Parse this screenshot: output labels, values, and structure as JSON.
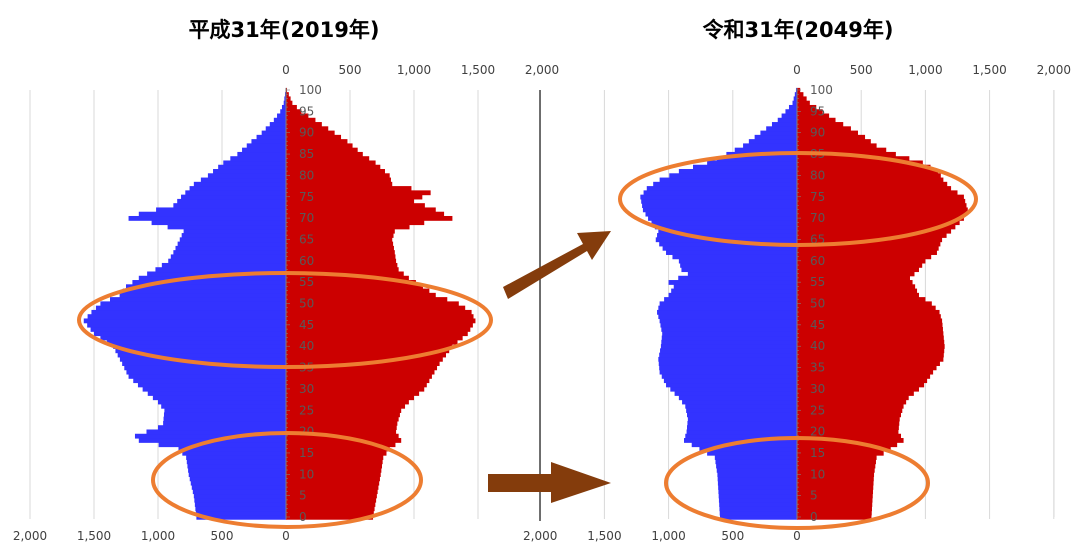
{
  "chart_data": [
    {
      "type": "population-pyramid",
      "title": "平成31年(2019年)",
      "top_ticks": [
        "0",
        "500",
        "1,000",
        "1,500",
        "2,000"
      ],
      "bottom_ticks": [
        "2,000",
        "1,500",
        "1,000",
        "500",
        "0"
      ],
      "age_labels": [
        "0",
        "5",
        "10",
        "15",
        "20",
        "25",
        "30",
        "35",
        "40",
        "45",
        "50",
        "55",
        "60",
        "65",
        "70",
        "75",
        "80",
        "85",
        "90",
        "95",
        "100"
      ],
      "xlim": [
        0,
        2000
      ],
      "ages": [
        0,
        100
      ],
      "series": [
        {
          "values_by_age": [
            [
              0,
              700
            ],
            [
              5,
              720
            ],
            [
              10,
              760
            ],
            [
              14,
              780
            ],
            [
              16,
              840
            ],
            [
              18,
              1150
            ],
            [
              19,
              1180
            ],
            [
              21,
              1000
            ],
            [
              22,
              960
            ],
            [
              25,
              950
            ],
            [
              27,
              1000
            ],
            [
              30,
              1120
            ],
            [
              33,
              1230
            ],
            [
              36,
              1280
            ],
            [
              40,
              1350
            ],
            [
              43,
              1500
            ],
            [
              46,
              1580
            ],
            [
              48,
              1520
            ],
            [
              50,
              1450
            ],
            [
              52,
              1300
            ],
            [
              54,
              1250
            ],
            [
              56,
              1150
            ],
            [
              58,
              1020
            ],
            [
              60,
              920
            ],
            [
              62,
              880
            ],
            [
              65,
              830
            ],
            [
              67,
              800
            ],
            [
              69,
              1050
            ],
            [
              70,
              1230
            ],
            [
              71,
              1150
            ],
            [
              73,
              880
            ],
            [
              75,
              820
            ],
            [
              78,
              720
            ],
            [
              80,
              610
            ],
            [
              83,
              490
            ],
            [
              85,
              380
            ],
            [
              88,
              270
            ],
            [
              90,
              190
            ],
            [
              93,
              95
            ],
            [
              95,
              45
            ],
            [
              97,
              18
            ],
            [
              100,
              3
            ]
          ],
          "color": "#3333ff"
        },
        {
          "values_by_age": [
            [
              0,
              680
            ],
            [
              5,
              710
            ],
            [
              10,
              740
            ],
            [
              14,
              760
            ],
            [
              16,
              810
            ],
            [
              18,
              900
            ],
            [
              20,
              860
            ],
            [
              22,
              870
            ],
            [
              25,
              900
            ],
            [
              27,
              960
            ],
            [
              30,
              1080
            ],
            [
              33,
              1140
            ],
            [
              36,
              1200
            ],
            [
              40,
              1300
            ],
            [
              43,
              1420
            ],
            [
              46,
              1480
            ],
            [
              48,
              1450
            ],
            [
              50,
              1350
            ],
            [
              52,
              1170
            ],
            [
              54,
              1070
            ],
            [
              56,
              960
            ],
            [
              58,
              880
            ],
            [
              60,
              860
            ],
            [
              62,
              850
            ],
            [
              65,
              830
            ],
            [
              67,
              850
            ],
            [
              69,
              1080
            ],
            [
              70,
              1300
            ],
            [
              72,
              1170
            ],
            [
              74,
              1000
            ],
            [
              76,
              1130
            ],
            [
              78,
              830
            ],
            [
              80,
              810
            ],
            [
              83,
              700
            ],
            [
              85,
              600
            ],
            [
              88,
              480
            ],
            [
              90,
              380
            ],
            [
              93,
              230
            ],
            [
              95,
              120
            ],
            [
              97,
              50
            ],
            [
              100,
              8
            ]
          ],
          "color": "#cc0000"
        }
      ],
      "ellipse_color": "#ed7d31"
    },
    {
      "type": "population-pyramid",
      "title": "令和31年(2049年)",
      "top_ticks": [
        "0",
        "500",
        "1,000",
        "1,500",
        "2,000"
      ],
      "bottom_ticks": [
        "2,000",
        "1,500",
        "1,000",
        "500",
        "0"
      ],
      "age_labels": [
        "0",
        "5",
        "10",
        "15",
        "20",
        "25",
        "30",
        "35",
        "40",
        "45",
        "50",
        "55",
        "60",
        "65",
        "70",
        "75",
        "80",
        "85",
        "90",
        "95",
        "100"
      ],
      "xlim": [
        0,
        2000
      ],
      "ages": [
        0,
        100
      ],
      "series": [
        {
          "values_by_age": [
            [
              0,
              600
            ],
            [
              5,
              610
            ],
            [
              10,
              620
            ],
            [
              14,
              640
            ],
            [
              16,
              760
            ],
            [
              18,
              880
            ],
            [
              20,
              860
            ],
            [
              23,
              850
            ],
            [
              26,
              870
            ],
            [
              28,
              920
            ],
            [
              31,
              1020
            ],
            [
              34,
              1070
            ],
            [
              37,
              1080
            ],
            [
              40,
              1060
            ],
            [
              43,
              1050
            ],
            [
              46,
              1070
            ],
            [
              48,
              1090
            ],
            [
              50,
              1070
            ],
            [
              52,
              1000
            ],
            [
              54,
              960
            ],
            [
              55,
              1000
            ],
            [
              57,
              850
            ],
            [
              58,
              900
            ],
            [
              60,
              920
            ],
            [
              62,
              1020
            ],
            [
              65,
              1100
            ],
            [
              67,
              1080
            ],
            [
              70,
              1160
            ],
            [
              72,
              1200
            ],
            [
              75,
              1220
            ],
            [
              77,
              1170
            ],
            [
              79,
              1070
            ],
            [
              81,
              920
            ],
            [
              83,
              700
            ],
            [
              85,
              550
            ],
            [
              87,
              420
            ],
            [
              89,
              330
            ],
            [
              91,
              240
            ],
            [
              93,
              150
            ],
            [
              95,
              90
            ],
            [
              97,
              35
            ],
            [
              100,
              8
            ]
          ],
          "color": "#3333ff"
        },
        {
          "values_by_age": [
            [
              0,
              580
            ],
            [
              5,
              590
            ],
            [
              10,
              600
            ],
            [
              14,
              620
            ],
            [
              16,
              730
            ],
            [
              18,
              830
            ],
            [
              20,
              790
            ],
            [
              23,
              800
            ],
            [
              26,
              830
            ],
            [
              28,
              870
            ],
            [
              31,
              990
            ],
            [
              34,
              1060
            ],
            [
              37,
              1140
            ],
            [
              40,
              1150
            ],
            [
              43,
              1140
            ],
            [
              46,
              1130
            ],
            [
              48,
              1110
            ],
            [
              50,
              1050
            ],
            [
              52,
              950
            ],
            [
              54,
              920
            ],
            [
              56,
              880
            ],
            [
              58,
              950
            ],
            [
              60,
              1000
            ],
            [
              62,
              1090
            ],
            [
              65,
              1130
            ],
            [
              67,
              1200
            ],
            [
              70,
              1300
            ],
            [
              72,
              1330
            ],
            [
              75,
              1300
            ],
            [
              77,
              1200
            ],
            [
              79,
              1140
            ],
            [
              81,
              1100
            ],
            [
              83,
              980
            ],
            [
              85,
              770
            ],
            [
              87,
              620
            ],
            [
              89,
              530
            ],
            [
              91,
              420
            ],
            [
              93,
              300
            ],
            [
              95,
              200
            ],
            [
              97,
              100
            ],
            [
              100,
              25
            ]
          ],
          "color": "#cc0000"
        }
      ],
      "ellipse_color": "#ed7d31"
    }
  ],
  "arrow_color": "#843c0c"
}
